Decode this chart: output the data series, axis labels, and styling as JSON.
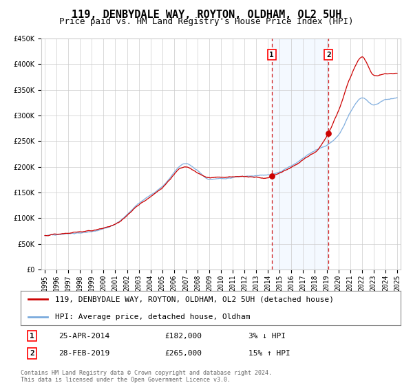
{
  "title": "119, DENBYDALE WAY, ROYTON, OLDHAM, OL2 5UH",
  "subtitle": "Price paid vs. HM Land Registry's House Price Index (HPI)",
  "legend_line1": "119, DENBYDALE WAY, ROYTON, OLDHAM, OL2 5UH (detached house)",
  "legend_line2": "HPI: Average price, detached house, Oldham",
  "annotation1_label": "1",
  "annotation1_date": "25-APR-2014",
  "annotation1_price": "£182,000",
  "annotation1_pct": "3% ↓ HPI",
  "annotation2_label": "2",
  "annotation2_date": "28-FEB-2019",
  "annotation2_price": "£265,000",
  "annotation2_pct": "15% ↑ HPI",
  "copyright": "Contains HM Land Registry data © Crown copyright and database right 2024.\nThis data is licensed under the Open Government Licence v3.0.",
  "sale1_year": 2014.32,
  "sale1_value": 182000,
  "sale2_year": 2019.16,
  "sale2_value": 265000,
  "year_start": 1995,
  "year_end": 2025,
  "ylim_min": 0,
  "ylim_max": 450000,
  "hpi_color": "#7aaadd",
  "price_color": "#cc0000",
  "shade_color": "#ddeeff",
  "grid_color": "#cccccc",
  "bg_color": "#ffffff",
  "title_fontsize": 11,
  "subtitle_fontsize": 9,
  "tick_fontsize": 7,
  "legend_fontsize": 8,
  "annotation_fontsize": 8,
  "hpi_waypoints_x": [
    1995,
    1997,
    1999,
    2001,
    2003,
    2005,
    2007,
    2008,
    2009,
    2010,
    2012,
    2014,
    2016,
    2018,
    2019,
    2020,
    2021,
    2022,
    2023,
    2024,
    2025
  ],
  "hpi_waypoints_y": [
    67000,
    70000,
    75000,
    90000,
    130000,
    165000,
    210000,
    195000,
    178000,
    180000,
    183000,
    187000,
    205000,
    235000,
    247000,
    265000,
    310000,
    340000,
    325000,
    335000,
    340000
  ],
  "price_offset_waypoints_x": [
    1995,
    1999,
    2003,
    2005,
    2007,
    2008,
    2009,
    2011,
    2013,
    2014,
    2015,
    2016,
    2018,
    2019,
    2020,
    2021,
    2022,
    2023,
    2024,
    2025
  ],
  "price_offset_waypoints_y": [
    0,
    2000,
    -3000,
    -5000,
    -8000,
    -5000,
    3000,
    2000,
    -2000,
    -5000,
    -3000,
    -2000,
    -3000,
    18000,
    50000,
    70000,
    80000,
    60000,
    55000,
    50000
  ]
}
